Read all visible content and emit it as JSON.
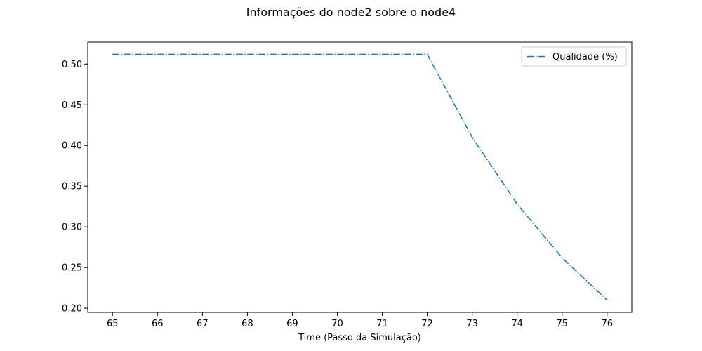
{
  "chart_data": {
    "type": "line",
    "title": "Informações do node2 sobre o node4",
    "xlabel": "Time (Passo da Simulação)",
    "ylabel": "",
    "x": [
      65,
      66,
      67,
      68,
      69,
      70,
      71,
      72,
      73,
      74,
      75,
      76
    ],
    "series": [
      {
        "name": "Qualidade (%)",
        "values": [
          0.512,
          0.512,
          0.512,
          0.512,
          0.512,
          0.512,
          0.512,
          0.512,
          0.41,
          0.328,
          0.262,
          0.21
        ],
        "color": "#1f77b4",
        "line_style": "dash-dot"
      }
    ],
    "xticks": [
      "65",
      "66",
      "67",
      "68",
      "69",
      "70",
      "71",
      "72",
      "73",
      "74",
      "75",
      "76"
    ],
    "yticks": [
      "0.20",
      "0.25",
      "0.30",
      "0.35",
      "0.40",
      "0.45",
      "0.50"
    ],
    "xlim": [
      64.45,
      76.55
    ],
    "ylim": [
      0.1949,
      0.527
    ],
    "grid": false,
    "legend_position": "upper right"
  }
}
